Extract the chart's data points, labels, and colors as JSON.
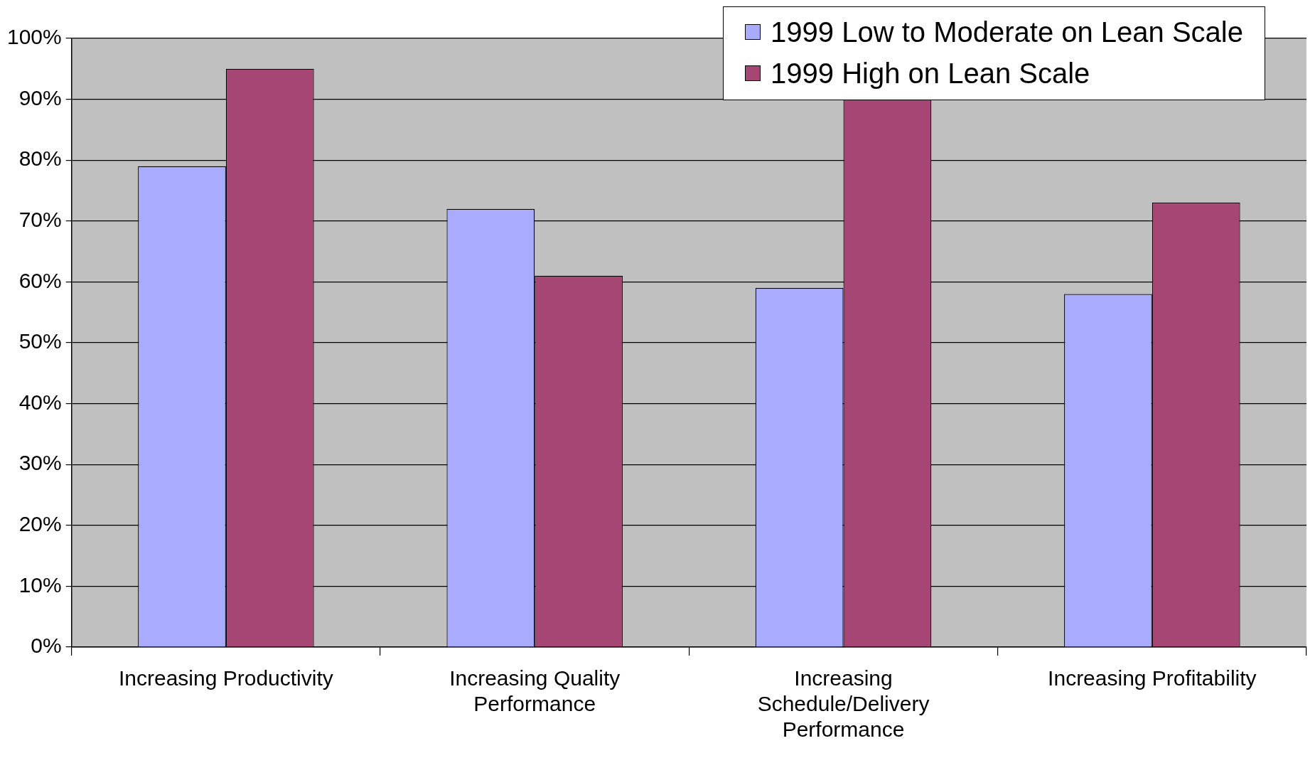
{
  "chart_data": {
    "type": "bar",
    "categories": [
      "Increasing Productivity",
      "Increasing Quality Performance",
      "Increasing Schedule/Delivery Performance",
      "Increasing Profitability"
    ],
    "series": [
      {
        "name": "1999 Low to Moderate on Lean Scale",
        "color": "#a9abff",
        "values": [
          79,
          72,
          59,
          58
        ]
      },
      {
        "name": "1999 High on Lean Scale",
        "color": "#a64674",
        "values": [
          95,
          61,
          90,
          73
        ]
      }
    ],
    "ylim": [
      0,
      100
    ],
    "yticks": [
      {
        "value": 0,
        "label": "0%"
      },
      {
        "value": 10,
        "label": "10%"
      },
      {
        "value": 20,
        "label": "20%"
      },
      {
        "value": 30,
        "label": "30%"
      },
      {
        "value": 40,
        "label": "40%"
      },
      {
        "value": 50,
        "label": "50%"
      },
      {
        "value": 60,
        "label": "60%"
      },
      {
        "value": 70,
        "label": "70%"
      },
      {
        "value": 80,
        "label": "80%"
      },
      {
        "value": 90,
        "label": "90%"
      },
      {
        "value": 100,
        "label": "100%"
      }
    ],
    "grid": "y",
    "legend": "top right"
  }
}
